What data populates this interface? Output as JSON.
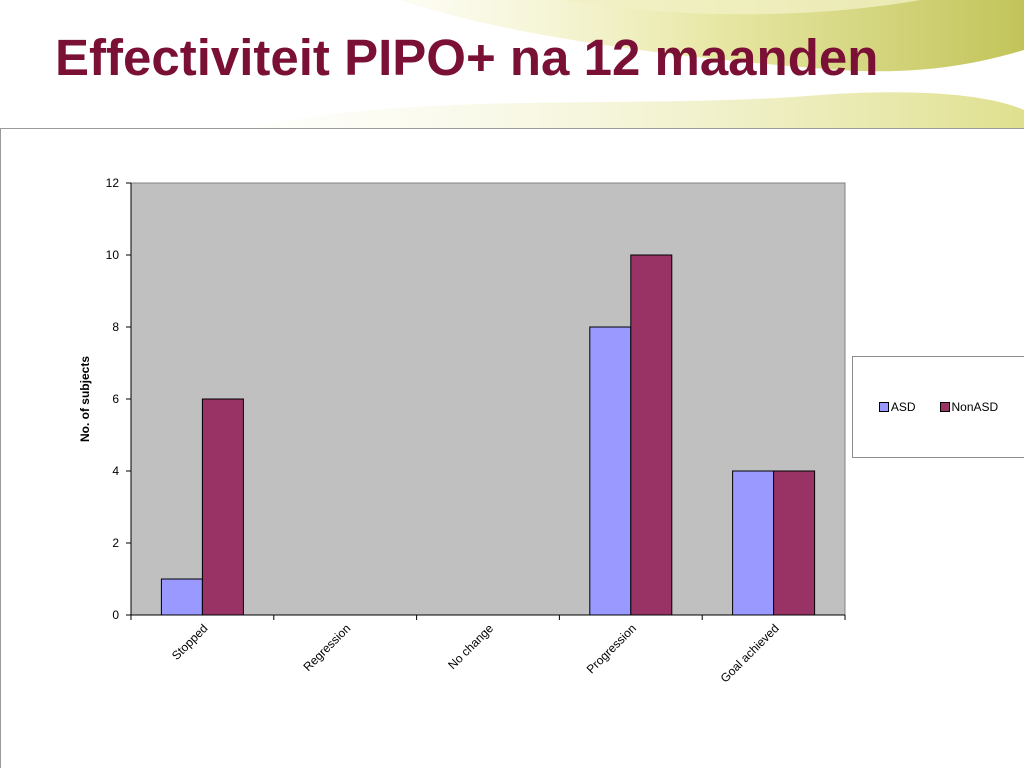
{
  "slide": {
    "title": "Effectiviteit PIPO+ na 12 maanden",
    "title_color": "#7a1035"
  },
  "chart_data": {
    "type": "bar",
    "title": "",
    "xlabel": "",
    "ylabel": "No. of subjects",
    "categories": [
      "Stopped",
      "Regression",
      "No change",
      "Progression",
      "Goal achieved"
    ],
    "series": [
      {
        "name": "ASD",
        "values": [
          1,
          0,
          0,
          8,
          4
        ],
        "color": "#9999ff"
      },
      {
        "name": "NonASD",
        "values": [
          6,
          0,
          0,
          10,
          4
        ],
        "color": "#993366"
      }
    ],
    "ylim": [
      0,
      12
    ],
    "yticks": [
      0,
      2,
      4,
      6,
      8,
      10,
      12
    ],
    "grid": false,
    "plot_background": "#c0c0c0",
    "legend_position": "right"
  }
}
